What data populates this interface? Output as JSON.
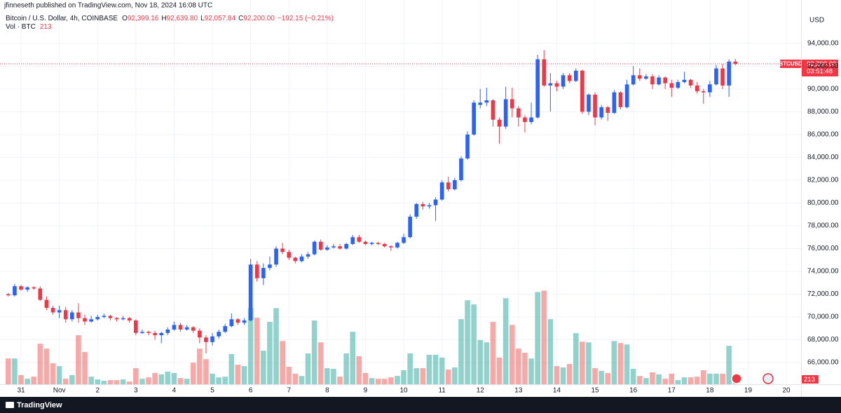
{
  "header": "jfinneseth published on TradingView.com, Nov 18, 2024 16:08 UTC",
  "footer": "TradingView",
  "chart_data": {
    "type": "candlestick",
    "symbol_tag": "BTCUSD",
    "currency": "USD",
    "legend": {
      "symbol": "Bitcoin / U.S. Dollar, 4h, COINBASE",
      "ohlc": [
        {
          "key": "O",
          "value": "92,399.16"
        },
        {
          "key": "H",
          "value": "92,639.80"
        },
        {
          "key": "L",
          "value": "92,057.84"
        },
        {
          "key": "C",
          "value": "92,200.00"
        }
      ],
      "change": "−192.15 (−0.21%)"
    },
    "volume_title": "Vol · BTC",
    "last_price_label": "92,200.00",
    "countdown": "03:51:48",
    "up_color": "#2962ff",
    "down_color": "#f23645",
    "volume_up_color": "#26a69a",
    "volume_down_color": "#ef5350",
    "grid": true,
    "xlim": [
      -1.3,
      124.3
    ],
    "xticks": [
      {
        "value": 2,
        "label": "31"
      },
      {
        "value": 8,
        "label": "Nov"
      },
      {
        "value": 14,
        "label": "2"
      },
      {
        "value": 20,
        "label": "3"
      },
      {
        "value": 26,
        "label": "4"
      },
      {
        "value": 32,
        "label": "5"
      },
      {
        "value": 38,
        "label": "6"
      },
      {
        "value": 44,
        "label": "7"
      },
      {
        "value": 50,
        "label": "8"
      },
      {
        "value": 56,
        "label": "9"
      },
      {
        "value": 62,
        "label": "10"
      },
      {
        "value": 68,
        "label": "11"
      },
      {
        "value": 74,
        "label": "12"
      },
      {
        "value": 80,
        "label": "13"
      },
      {
        "value": 86,
        "label": "14"
      },
      {
        "value": 92,
        "label": "15"
      },
      {
        "value": 98,
        "label": "16"
      },
      {
        "value": 104,
        "label": "17"
      },
      {
        "value": 110,
        "label": "18"
      },
      {
        "value": 116,
        "label": "19"
      },
      {
        "value": 122,
        "label": "20"
      }
    ],
    "ylim": [
      64100,
      97800
    ],
    "yticks": [
      {
        "value": 66000,
        "label": "66,000.00"
      },
      {
        "value": 68000,
        "label": "68,000.00"
      },
      {
        "value": 70000,
        "label": "70,000.00"
      },
      {
        "value": 72000,
        "label": "72,000.00"
      },
      {
        "value": 74000,
        "label": "74,000.00"
      },
      {
        "value": 76000,
        "label": "76,000.00"
      },
      {
        "value": 78000,
        "label": "78,000.00"
      },
      {
        "value": 80000,
        "label": "80,000.00"
      },
      {
        "value": 82000,
        "label": "82,000.00"
      },
      {
        "value": 84000,
        "label": "84,000.00"
      },
      {
        "value": 86000,
        "label": "86,000.00"
      },
      {
        "value": 88000,
        "label": "88,000.00"
      },
      {
        "value": 90000,
        "label": "90,000.00"
      },
      {
        "value": 92000,
        "label": "92,000.00"
      },
      {
        "value": 94000,
        "label": "94,000.00"
      }
    ],
    "volume_ylim": [
      0,
      16700
    ],
    "open": [
      72000,
      71900,
      72700,
      72400,
      72600,
      72500,
      71500,
      70800,
      70400,
      70600,
      69800,
      70400,
      69900,
      69600,
      69800,
      70000,
      70100,
      69900,
      69800,
      69900,
      69700,
      68600,
      68700,
      68600,
      68400,
      68600,
      68900,
      69300,
      68900,
      69100,
      68800,
      68200,
      67800,
      68300,
      68700,
      69200,
      69800,
      69500,
      69700,
      74600,
      73400,
      74300,
      74600,
      76000,
      75700,
      75200,
      74900,
      75300,
      75500,
      76600,
      75900,
      76100,
      76200,
      76000,
      76400,
      77000,
      76600,
      76400,
      76500,
      76400,
      76200,
      76100,
      76500,
      77000,
      78800,
      79900,
      79700,
      79800,
      80300,
      81800,
      81200,
      82000,
      83900,
      86000,
      88600,
      88800,
      89000,
      87300,
      86700,
      89100,
      88300,
      87500,
      87100,
      87500,
      92600,
      90300,
      90500,
      90200,
      91200,
      90700,
      91600,
      88000,
      89500,
      87500,
      88400,
      87900,
      89700,
      88400,
      90400,
      91200,
      90900,
      91100,
      90400,
      91000,
      90500,
      90100,
      90600,
      90800,
      90300,
      89800,
      89700,
      90400,
      91800,
      90300,
      92399.16
    ],
    "high": [
      72100,
      72900,
      72800,
      72700,
      72700,
      72700,
      71800,
      71000,
      71000,
      70900,
      70600,
      71200,
      70200,
      70100,
      70200,
      70300,
      70200,
      70000,
      70100,
      70000,
      69800,
      68900,
      68800,
      68800,
      68700,
      69100,
      69600,
      69500,
      69300,
      69200,
      69000,
      68400,
      68600,
      68900,
      69400,
      70300,
      69900,
      69900,
      75100,
      74900,
      74700,
      75300,
      76200,
      76500,
      75900,
      75300,
      75500,
      75700,
      76700,
      76800,
      76300,
      76400,
      76400,
      76500,
      77200,
      77200,
      76700,
      76600,
      76600,
      76500,
      76300,
      76600,
      77300,
      79000,
      80000,
      80100,
      80000,
      80500,
      82000,
      82300,
      82200,
      84100,
      86300,
      89000,
      90000,
      90100,
      89100,
      87500,
      90200,
      90100,
      88500,
      87700,
      88800,
      93000,
      93400,
      91400,
      90700,
      91400,
      91400,
      91800,
      91700,
      89600,
      89700,
      88600,
      88500,
      89900,
      89800,
      90800,
      92000,
      91800,
      91300,
      91300,
      91200,
      91100,
      90800,
      90800,
      91500,
      90900,
      90600,
      90000,
      90700,
      92100,
      92200,
      92600,
      92639.8
    ],
    "low": [
      71800,
      71800,
      72300,
      72200,
      72400,
      71400,
      70600,
      70200,
      69900,
      69500,
      69600,
      69500,
      69300,
      69500,
      69700,
      69900,
      69700,
      69600,
      69700,
      69500,
      68400,
      68500,
      68400,
      68000,
      67700,
      68400,
      68800,
      68700,
      68800,
      68600,
      67700,
      66800,
      67500,
      68100,
      68600,
      69100,
      69300,
      69300,
      69600,
      73100,
      72800,
      74100,
      74400,
      75500,
      75000,
      74700,
      74800,
      75100,
      75400,
      75800,
      75800,
      76000,
      75900,
      75900,
      76300,
      76500,
      76300,
      76300,
      76300,
      76100,
      75800,
      76000,
      76400,
      76900,
      78600,
      79400,
      79500,
      78400,
      80200,
      81000,
      81100,
      81900,
      83800,
      85900,
      88300,
      88500,
      86700,
      85200,
      86500,
      87500,
      86700,
      86200,
      86900,
      87400,
      90200,
      88000,
      89800,
      90000,
      90500,
      90600,
      87800,
      87700,
      86800,
      87300,
      87200,
      87800,
      88200,
      88300,
      90300,
      90700,
      90800,
      90000,
      90300,
      90000,
      89300,
      90000,
      90500,
      90100,
      89600,
      88700,
      89300,
      90300,
      90000,
      89300,
      92057.84
    ],
    "close": [
      71900,
      72700,
      72400,
      72600,
      72500,
      71500,
      70800,
      70400,
      70600,
      69800,
      70400,
      69900,
      69600,
      69800,
      70000,
      70100,
      69900,
      69800,
      69900,
      69700,
      68600,
      68700,
      68600,
      68400,
      68600,
      68900,
      69300,
      68900,
      69100,
      68800,
      68200,
      67800,
      68300,
      68700,
      69200,
      69800,
      69500,
      69700,
      74600,
      73400,
      74300,
      74600,
      76000,
      75700,
      75200,
      74900,
      75300,
      75500,
      76600,
      75900,
      76100,
      76200,
      76000,
      76400,
      77000,
      76600,
      76400,
      76500,
      76400,
      76200,
      76100,
      76500,
      77000,
      78800,
      79900,
      79700,
      79800,
      80300,
      81800,
      81200,
      82000,
      83900,
      86000,
      88800,
      88800,
      89000,
      87300,
      86700,
      89100,
      88300,
      87500,
      87100,
      87500,
      92600,
      90300,
      90500,
      90200,
      91200,
      90700,
      91600,
      88000,
      89500,
      87500,
      88400,
      87900,
      89700,
      88400,
      90400,
      91200,
      90900,
      91100,
      90400,
      91000,
      90500,
      90100,
      90600,
      90800,
      90300,
      89800,
      89700,
      90400,
      91800,
      90300,
      92400,
      92200
    ],
    "volume": [
      1120,
      1120,
      400,
      240,
      330,
      1760,
      1550,
      910,
      790,
      240,
      400,
      2130,
      1400,
      330,
      210,
      150,
      180,
      180,
      210,
      120,
      700,
      240,
      300,
      490,
      430,
      550,
      490,
      270,
      240,
      940,
      1550,
      1090,
      460,
      300,
      330,
      1310,
      850,
      790,
      3310,
      2890,
      1460,
      2710,
      3310,
      1880,
      760,
      460,
      360,
      1340,
      2770,
      1820,
      700,
      670,
      330,
      1340,
      2280,
      1220,
      490,
      270,
      240,
      240,
      300,
      360,
      610,
      1340,
      700,
      700,
      1280,
      1280,
      1160,
      640,
      730,
      2830,
      3650,
      3470,
      1920,
      1820,
      2710,
      1160,
      3740,
      2580,
      1550,
      1370,
      1120,
      4010,
      4070,
      2830,
      790,
      730,
      880,
      2220,
      1850,
      1820,
      700,
      580,
      490,
      1880,
      1790,
      1730,
      670,
      360,
      270,
      520,
      430,
      240,
      460,
      180,
      300,
      300,
      330,
      610,
      460,
      460,
      460,
      1670,
      213
    ]
  }
}
